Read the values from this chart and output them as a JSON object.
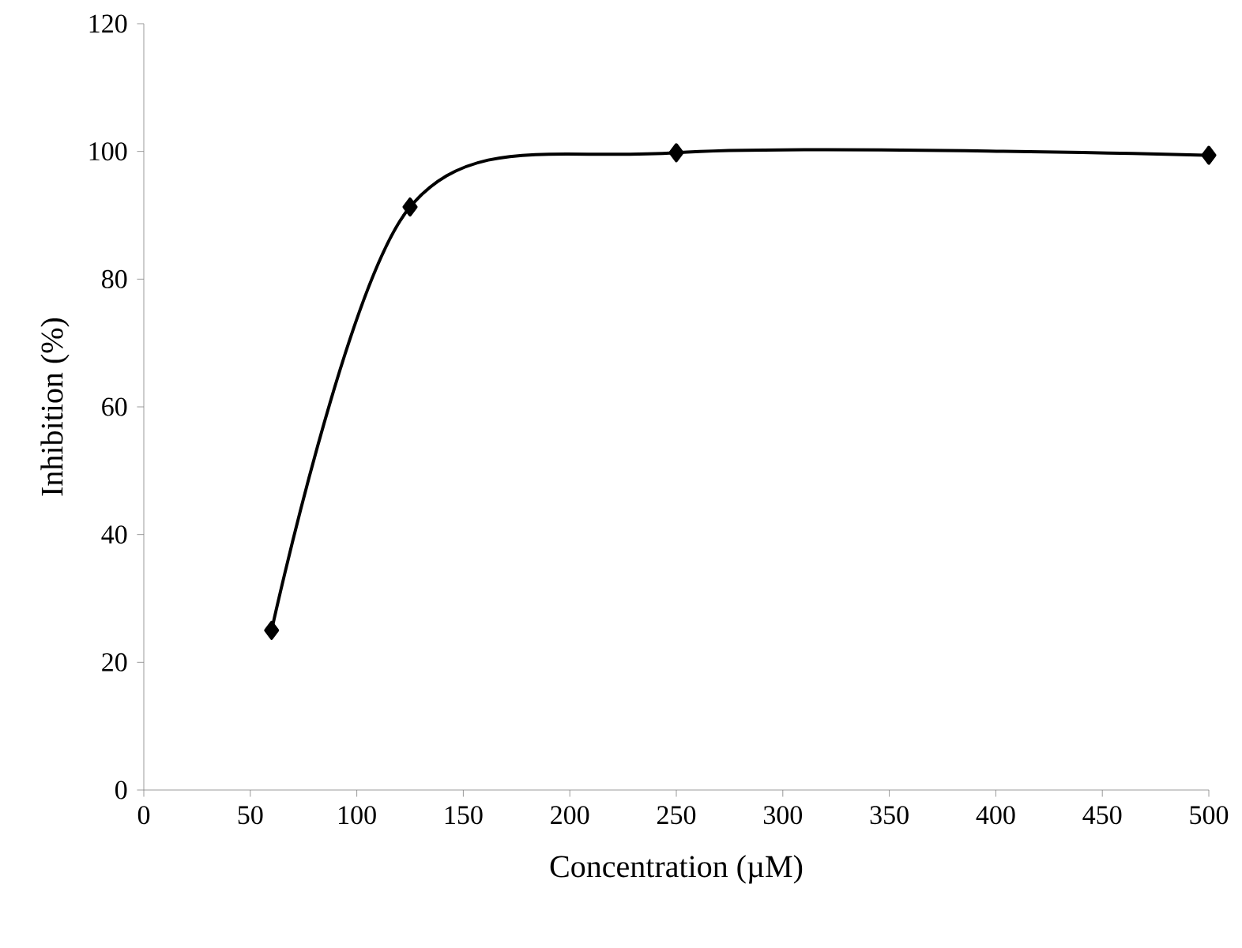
{
  "chart_data": {
    "type": "line",
    "xlabel": "Concentration (µM)",
    "ylabel": "Inhibition (%)",
    "x": [
      60,
      125,
      250,
      500
    ],
    "values": [
      25,
      91.3,
      99.8,
      99.4
    ],
    "color": "#000000",
    "xlim": [
      0,
      500
    ],
    "xticks": [
      0,
      50,
      100,
      150,
      200,
      250,
      300,
      350,
      400,
      450,
      500
    ],
    "ylim": [
      0,
      120
    ],
    "yticks": [
      0,
      20,
      40,
      60,
      80,
      100,
      120
    ],
    "marker": "diamond",
    "line_style": "solid"
  }
}
